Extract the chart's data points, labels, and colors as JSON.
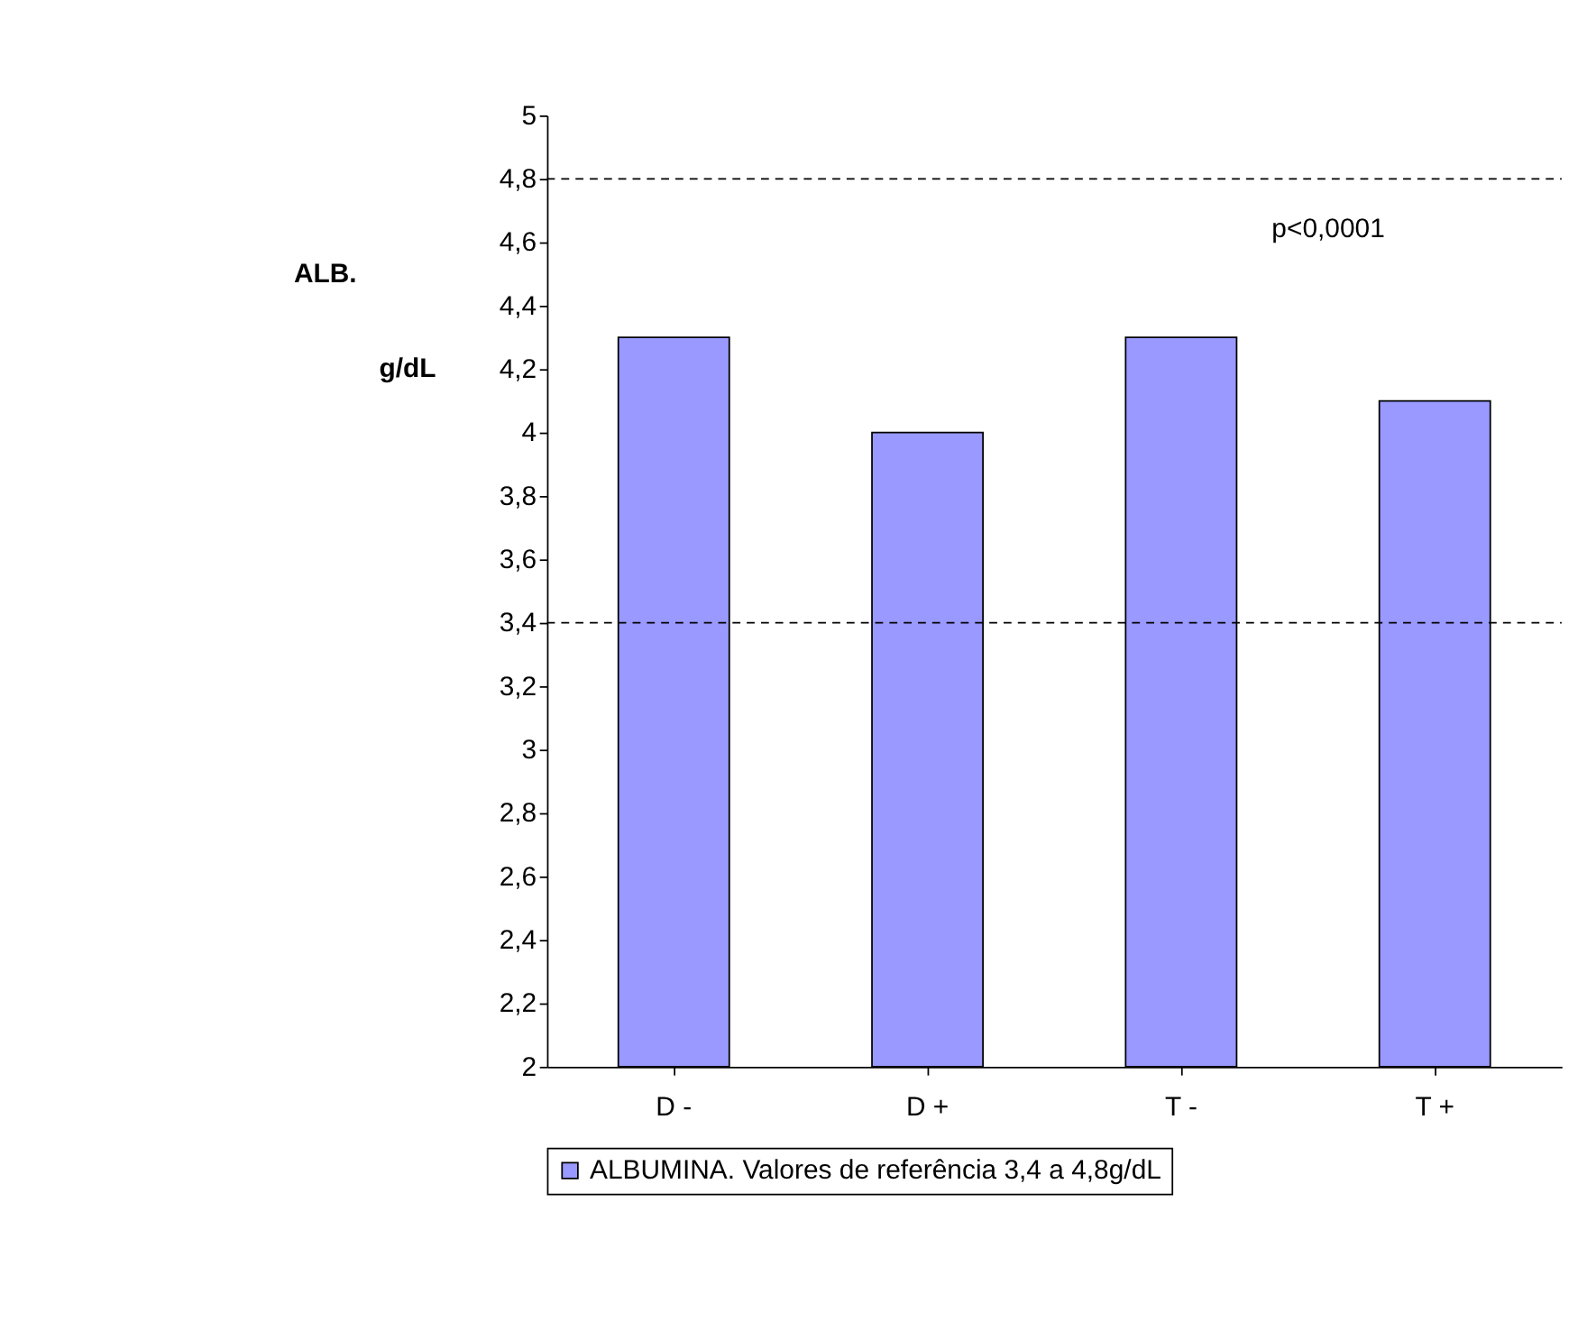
{
  "chart_data": {
    "type": "bar",
    "ylabel": "ALB.\ng/dL",
    "categories": [
      "D -",
      "D +",
      "T -",
      "T +"
    ],
    "series": [
      {
        "name": "ALBUMINA. Valores de referência 3,4 a 4,8g/dL",
        "color": "#9999ff",
        "values": [
          4.3,
          4.0,
          4.3,
          4.1
        ]
      }
    ],
    "ylim": [
      2,
      5
    ],
    "yticks": [
      2,
      {
        "value": 2.2,
        "label": "2,2"
      },
      {
        "value": 2.4,
        "label": "2,4"
      },
      {
        "value": 2.6,
        "label": "2,6"
      },
      {
        "value": 2.8,
        "label": "2,8"
      },
      3,
      {
        "value": 3.2,
        "label": "3,2"
      },
      {
        "value": 3.4,
        "label": "3,4"
      },
      {
        "value": 3.6,
        "label": "3,6"
      },
      {
        "value": 3.8,
        "label": "3,8"
      },
      4,
      {
        "value": 4.2,
        "label": "4,2"
      },
      {
        "value": 4.4,
        "label": "4,4"
      },
      {
        "value": 4.6,
        "label": "4,6"
      },
      {
        "value": 4.8,
        "label": "4,8"
      },
      5
    ],
    "ref_lines": [
      {
        "axis": "y",
        "value": 4.8,
        "line_style": "dashed"
      },
      {
        "axis": "y",
        "value": 3.4,
        "line_style": "dashed"
      }
    ],
    "annotations": [
      "p<0,0001"
    ],
    "grid": false,
    "legend": "bottom"
  }
}
